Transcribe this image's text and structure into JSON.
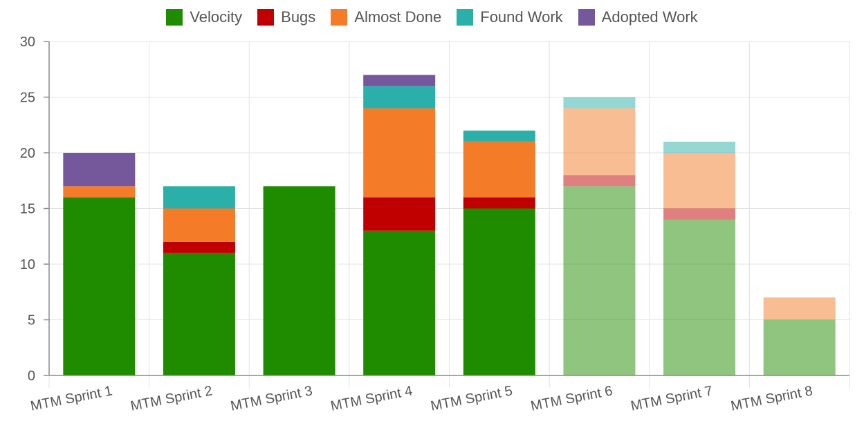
{
  "chart_data": {
    "type": "bar",
    "stacked": true,
    "categories": [
      "MTM Sprint 1",
      "MTM Sprint 2",
      "MTM Sprint 3",
      "MTM Sprint 4",
      "MTM Sprint 5",
      "MTM Sprint 6",
      "MTM Sprint 7",
      "MTM Sprint 8"
    ],
    "series": [
      {
        "name": "Velocity",
        "color": "#1f8c00",
        "values": [
          16,
          11,
          17,
          13,
          15,
          17,
          14,
          5
        ]
      },
      {
        "name": "Bugs",
        "color": "#c00000",
        "values": [
          0,
          1,
          0,
          3,
          1,
          1,
          1,
          0
        ]
      },
      {
        "name": "Almost Done",
        "color": "#f47b28",
        "values": [
          1,
          3,
          0,
          8,
          5,
          6,
          5,
          2
        ]
      },
      {
        "name": "Found Work",
        "color": "#2ab0a8",
        "values": [
          0,
          2,
          0,
          2,
          1,
          1,
          1,
          0
        ]
      },
      {
        "name": "Adopted Work",
        "color": "#75589b",
        "values": [
          3,
          0,
          0,
          1,
          0,
          0,
          0,
          0
        ]
      }
    ],
    "faded_categories": [
      "MTM Sprint 6",
      "MTM Sprint 7",
      "MTM Sprint 8"
    ],
    "ylim": [
      0,
      30
    ],
    "yticks": [
      0,
      5,
      10,
      15,
      20,
      25,
      30
    ],
    "grid": true,
    "legend_position": "top",
    "title": "",
    "xlabel": "",
    "ylabel": ""
  }
}
